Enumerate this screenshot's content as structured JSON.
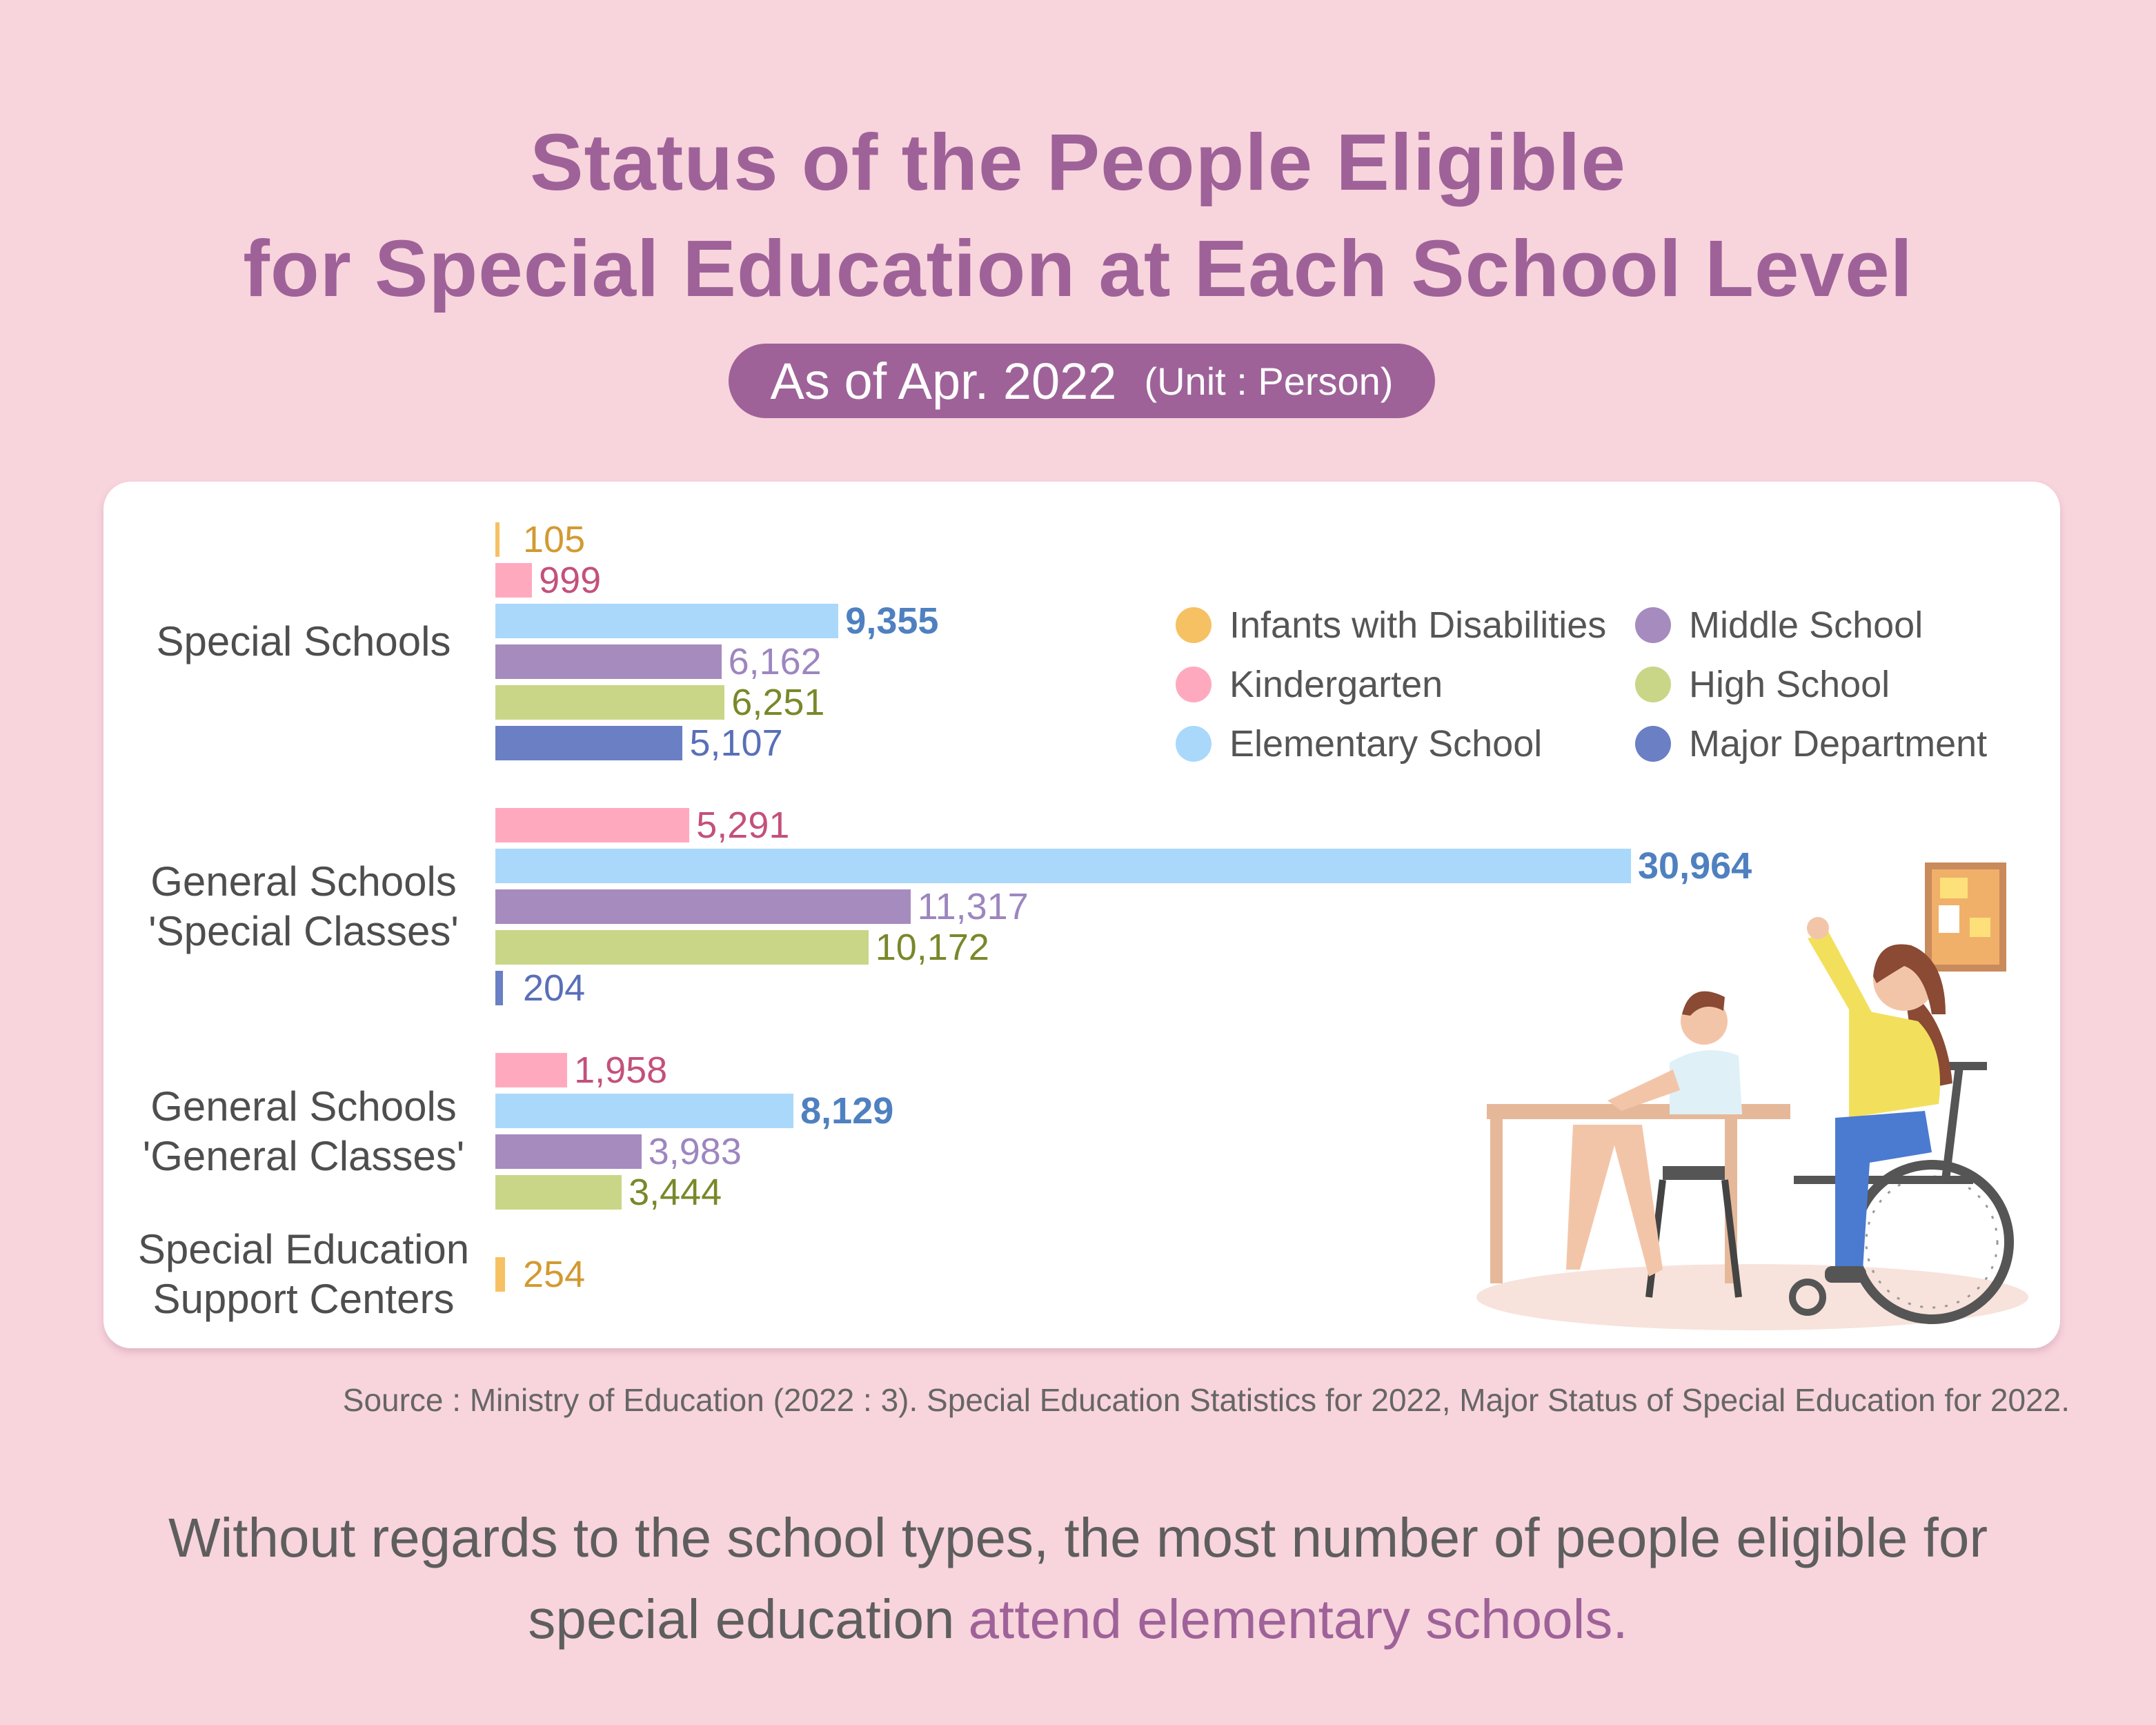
{
  "chart_data": {
    "type": "bar",
    "orientation": "horizontal",
    "title": [
      "Status of the People Eligible",
      "for Special Education at Each School Level"
    ],
    "subtitle": "As of Apr. 2022",
    "unit": "(Unit : Person)",
    "categories": [
      "Special Schools",
      "General Schools 'Special Classes'",
      "General Schools 'General Classes'",
      "Special Education Support Centers"
    ],
    "series": [
      {
        "name": "Infants with Disabilities",
        "color": "#f6c163",
        "label_color": "#d39a32",
        "values": [
          105,
          null,
          null,
          254
        ],
        "value_labels": [
          "105",
          null,
          null,
          "254"
        ]
      },
      {
        "name": "Kindergarten",
        "color": "#ffa9bf",
        "label_color": "#c4507c",
        "values": [
          999,
          5291,
          1958,
          null
        ],
        "value_labels": [
          "999",
          "5,291",
          "1,958",
          null
        ]
      },
      {
        "name": "Elementary School",
        "color": "#a9d8fb",
        "label_color": "#4f80c0",
        "bold_labels": true,
        "values": [
          9355,
          30964,
          8129,
          null
        ],
        "value_labels": [
          "9,355",
          "30,964",
          "8,129",
          null
        ]
      },
      {
        "name": "Middle School",
        "color": "#a68bbf",
        "label_color": "#9d86bf",
        "values": [
          6162,
          11317,
          3983,
          null
        ],
        "value_labels": [
          "6,162",
          "11,317",
          "3,983",
          null
        ]
      },
      {
        "name": "High School",
        "color": "#c9d687",
        "label_color": "#7a882a",
        "values": [
          6251,
          10172,
          3444,
          null
        ],
        "value_labels": [
          "6,251",
          "10,172",
          "3,444",
          null
        ]
      },
      {
        "name": "Major Department",
        "color": "#6a7fc4",
        "label_color": "#5a6fb8",
        "values": [
          5107,
          204,
          null,
          null
        ],
        "value_labels": [
          "5,107",
          "204",
          null,
          null
        ]
      }
    ],
    "source": "Source : Ministry of Education (2022 : 3). Special Education Statistics for 2022, Major Status of Special Education for 2022.",
    "note": {
      "text": "Without regards to the school types, the most number of people eligible for special education",
      "highlight": "attend elementary schools."
    }
  }
}
